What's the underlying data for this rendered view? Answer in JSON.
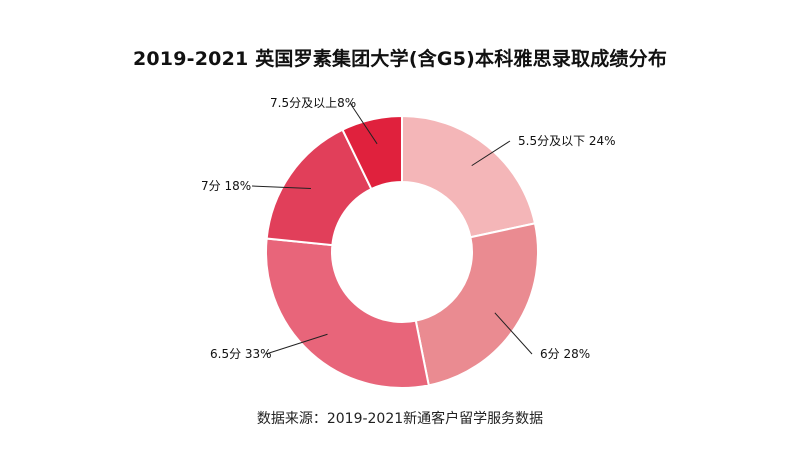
{
  "chart_data": {
    "type": "pie",
    "title": "2019-2021 英国罗素集团大学(含G5)本科雅思录取成绩分布",
    "slices": [
      {
        "label": "5.5分及以下",
        "value": 24,
        "display": "5.5分及以下 24%",
        "color": "#f4b6b8"
      },
      {
        "label": "6分",
        "value": 28,
        "display": "6分 28%",
        "color": "#ea8b91"
      },
      {
        "label": "6.5分",
        "value": 33,
        "display": "6.5分 33%",
        "color": "#e8657a"
      },
      {
        "label": "7分",
        "value": 18,
        "display": "7分 18%",
        "color": "#e13f5a"
      },
      {
        "label": "7.5分及以上",
        "value": 8,
        "display": "7.5分及以上8%",
        "color": "#e0213d"
      }
    ],
    "source": "数据来源：2019-2021新通客户留学服务数据"
  }
}
